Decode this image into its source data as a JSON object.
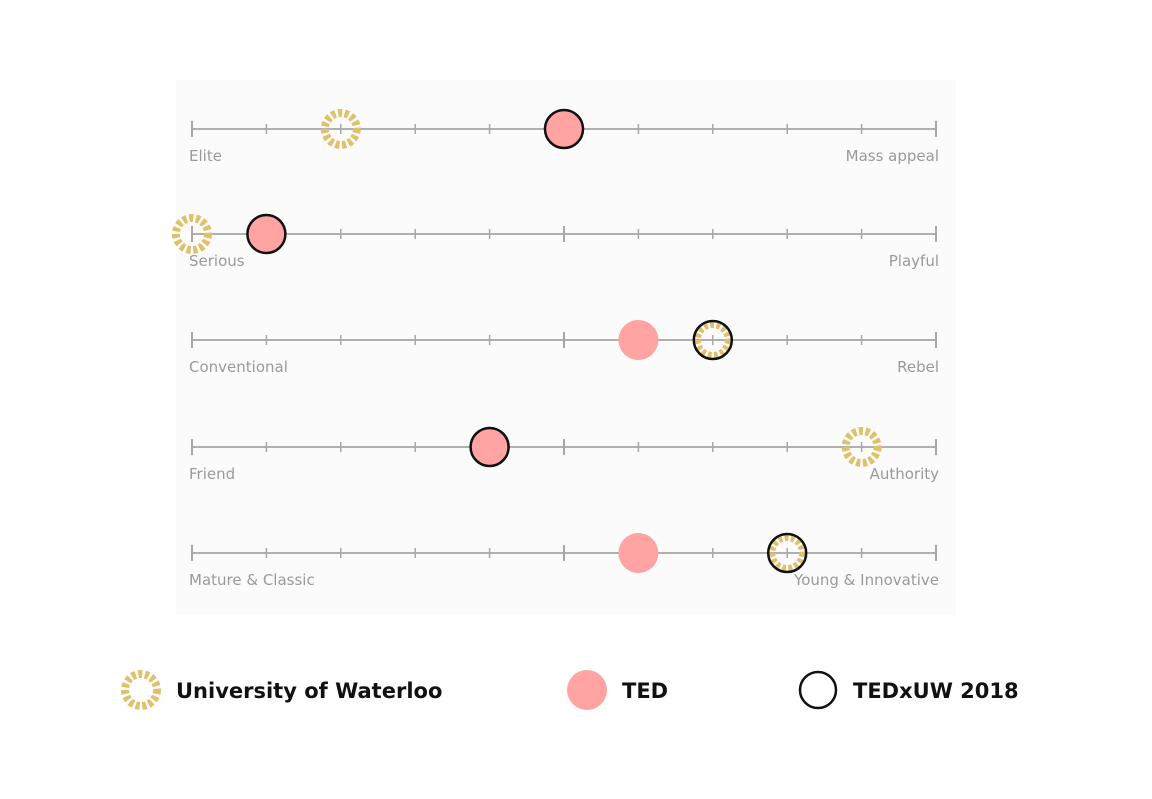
{
  "chart_data": {
    "type": "scatter",
    "title": "",
    "scale_min": 0,
    "scale_max": 10,
    "grid": false,
    "legend_placement": "bottom",
    "scales": [
      {
        "left_label": "Elite",
        "right_label": "Mass appeal"
      },
      {
        "left_label": "Serious",
        "right_label": "Playful"
      },
      {
        "left_label": "Conventional",
        "right_label": "Rebel"
      },
      {
        "left_label": "Friend",
        "right_label": "Authority"
      },
      {
        "left_label": "Mature & Classic",
        "right_label": "Young & Innovative"
      }
    ],
    "series": [
      {
        "name": "University of Waterloo",
        "marker": "gold-dashed-ring",
        "color": "#E0C068",
        "values": [
          2,
          0,
          7,
          9,
          8
        ]
      },
      {
        "name": "TED",
        "marker": "pink-dot",
        "color": "#FFA3A3",
        "values": [
          5,
          1,
          6,
          4,
          6
        ]
      },
      {
        "name": "TEDxUW 2018",
        "marker": "black-ring",
        "color": "#111111",
        "values": [
          5,
          1,
          7,
          4,
          8
        ]
      }
    ]
  }
}
